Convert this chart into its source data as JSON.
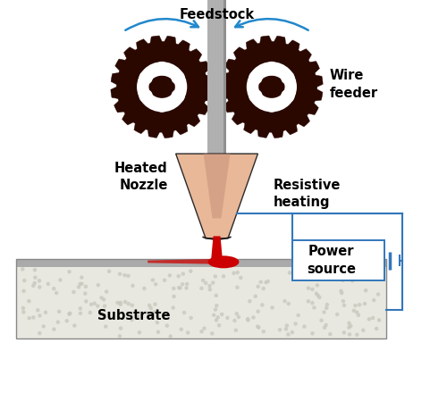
{
  "background_color": "#ffffff",
  "feedstock_label": "Feedstock",
  "wire_feeder_label": "Wire\nfeeder",
  "heated_nozzle_label": "Heated\nNozzle",
  "resistive_heating_label": "Resistive\nheating",
  "power_source_label": "Power\nsource",
  "substrate_label": "Substrate",
  "gear_color": "#2a0800",
  "gear_hole_color": "#ffffff",
  "feedstock_rod_color": "#b0b0b0",
  "nozzle_color": "#e8b898",
  "nozzle_inner_color": "#c8907a",
  "melt_color": "#cc0000",
  "substrate_fill": "#e8e8e0",
  "substrate_top_stripe": "#aaaaaa",
  "arrow_color": "#2288cc",
  "circuit_color": "#3377bb",
  "label_fontsize": 10.5,
  "label_fontweight": "bold"
}
